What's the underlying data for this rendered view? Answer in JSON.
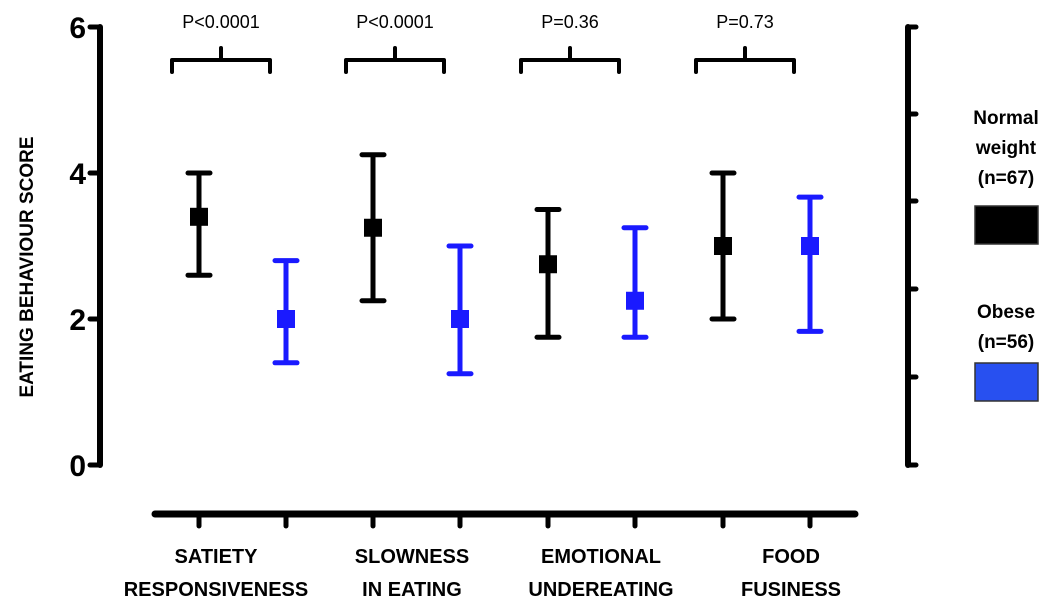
{
  "chart_data": {
    "type": "errorbar",
    "ylabel": "EATING BEHAVIOUR SCORE",
    "xlabel": "",
    "ylim": [
      0,
      6
    ],
    "yticks": [
      "0",
      "2",
      "4",
      "6"
    ],
    "grid": false,
    "legend_position": "right",
    "categories": [
      [
        "SATIETY",
        "RESPONSIVENESS"
      ],
      [
        "SLOWNESS",
        "IN EATING"
      ],
      [
        "EMOTIONAL",
        "UNDEREATING"
      ],
      [
        "FOOD",
        "FUSINESS"
      ]
    ],
    "series": [
      {
        "name": [
          "Normal",
          "weight",
          "(n=67)"
        ],
        "color": "#000000",
        "mean": [
          3.4,
          3.25,
          2.75,
          3.0
        ],
        "lower": [
          2.6,
          2.25,
          1.75,
          2.0
        ],
        "upper": [
          4.0,
          4.25,
          3.5,
          4.0
        ]
      },
      {
        "name": [
          "Obese",
          "(n=56)"
        ],
        "color": "#1a1aff",
        "legend_color": "#2850f0",
        "mean": [
          2.0,
          2.0,
          2.25,
          3.0
        ],
        "lower": [
          1.4,
          1.25,
          1.75,
          1.83
        ],
        "upper": [
          2.8,
          3.0,
          3.25,
          3.67
        ]
      }
    ],
    "pvalues": [
      "P<0.0001",
      "P<0.0001",
      "P=0.36",
      "P=0.73"
    ]
  }
}
